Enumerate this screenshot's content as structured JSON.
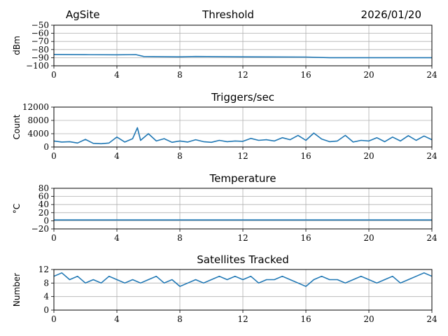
{
  "header": {
    "site": "AgSite",
    "title": "Threshold",
    "date": "2026/01/20"
  },
  "style": {
    "line_color": "#1f77b4",
    "grid_color": "#b0b0b0"
  },
  "chart_data": [
    {
      "type": "line",
      "title": "",
      "xlabel": "",
      "ylabel": "dBm",
      "xlim": [
        0,
        24
      ],
      "xticks": [
        0,
        4,
        8,
        12,
        16,
        20,
        24
      ],
      "ylim": [
        -100,
        -50
      ],
      "yticks": [
        -100,
        -90,
        -80,
        -70,
        -60,
        -50
      ],
      "grid": true,
      "series": [
        {
          "x": [
            0,
            2,
            4,
            5.2,
            5.7,
            8,
            9,
            12,
            16,
            17.5,
            20,
            24
          ],
          "y": [
            -86,
            -86.3,
            -86.5,
            -86.2,
            -88.5,
            -89,
            -88.5,
            -89,
            -89.2,
            -90,
            -90,
            -90
          ]
        }
      ]
    },
    {
      "type": "line",
      "title": "Triggers/sec",
      "xlabel": "",
      "ylabel": "Count",
      "xlim": [
        0,
        24
      ],
      "xticks": [
        0,
        4,
        8,
        12,
        16,
        20,
        24
      ],
      "ylim": [
        0,
        12000
      ],
      "yticks": [
        0,
        4000,
        8000,
        12000
      ],
      "grid": true,
      "series": [
        {
          "x": [
            0,
            0.5,
            1,
            1.5,
            2,
            2.5,
            3,
            3.5,
            4,
            4.5,
            5,
            5.3,
            5.5,
            6,
            6.5,
            7,
            7.5,
            8,
            8.5,
            9,
            9.5,
            10,
            10.5,
            11,
            11.5,
            12,
            12.5,
            13,
            13.5,
            14,
            14.5,
            15,
            15.5,
            16,
            16.5,
            17,
            17.5,
            18,
            18.5,
            19,
            19.5,
            20,
            20.5,
            21,
            21.5,
            22,
            22.5,
            23,
            23.5,
            24
          ],
          "y": [
            1800,
            1500,
            1600,
            1200,
            2300,
            1100,
            1000,
            1200,
            3000,
            1500,
            2500,
            5800,
            2000,
            4000,
            1800,
            2500,
            1400,
            1800,
            1500,
            2200,
            1600,
            1400,
            2000,
            1600,
            1800,
            1700,
            2600,
            2000,
            2200,
            1800,
            2800,
            2200,
            3500,
            2000,
            4200,
            2400,
            1600,
            1800,
            3500,
            1500,
            2000,
            1800,
            2800,
            1600,
            3000,
            1800,
            3400,
            2000,
            3300,
            2200
          ]
        }
      ]
    },
    {
      "type": "line",
      "title": "Temperature",
      "xlabel": "",
      "ylabel": "°C",
      "xlim": [
        0,
        24
      ],
      "xticks": [
        0,
        4,
        8,
        12,
        16,
        20,
        24
      ],
      "ylim": [
        -20,
        80
      ],
      "yticks": [
        -20,
        0,
        20,
        40,
        60,
        80
      ],
      "grid": true,
      "series": [
        {
          "x": [
            0,
            24
          ],
          "y": [
            2,
            2
          ]
        }
      ]
    },
    {
      "type": "line",
      "title": "Satellites Tracked",
      "xlabel": "",
      "ylabel": "Number",
      "xlim": [
        0,
        24
      ],
      "xticks": [
        0,
        4,
        8,
        12,
        16,
        20,
        24
      ],
      "ylim": [
        0,
        12
      ],
      "yticks": [
        0,
        4,
        8,
        12
      ],
      "grid": true,
      "series": [
        {
          "x": [
            0,
            0.5,
            1,
            1.5,
            2,
            2.5,
            3,
            3.5,
            4,
            4.5,
            5,
            5.5,
            6,
            6.5,
            7,
            7.5,
            8,
            8.5,
            9,
            9.5,
            10,
            10.5,
            11,
            11.5,
            12,
            12.5,
            13,
            13.5,
            14,
            14.5,
            15,
            15.5,
            16,
            16.5,
            17,
            17.5,
            18,
            18.5,
            19,
            19.5,
            20,
            20.5,
            21,
            21.5,
            22,
            22.5,
            23,
            23.5,
            24
          ],
          "y": [
            10,
            11,
            9,
            10,
            8,
            9,
            8,
            10,
            9,
            8,
            9,
            8,
            9,
            10,
            8,
            9,
            7,
            8,
            9,
            8,
            9,
            10,
            9,
            10,
            9,
            10,
            8,
            9,
            9,
            10,
            9,
            8,
            7,
            9,
            10,
            9,
            9,
            8,
            9,
            10,
            9,
            8,
            9,
            10,
            8,
            9,
            10,
            11,
            10
          ]
        }
      ]
    }
  ]
}
